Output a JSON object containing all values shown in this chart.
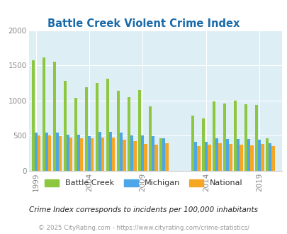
{
  "title": "Battle Creek Violent Crime Index",
  "years": [
    1999,
    2000,
    2001,
    2002,
    2003,
    2004,
    2005,
    2006,
    2007,
    2008,
    2009,
    2010,
    2011,
    2013,
    2014,
    2015,
    2016,
    2017,
    2018,
    2019,
    2020
  ],
  "battle_creek": [
    1570,
    1620,
    1550,
    1280,
    1040,
    1195,
    1250,
    1310,
    1145,
    1050,
    1150,
    920,
    460,
    785,
    750,
    990,
    960,
    1000,
    950,
    940,
    460
  ],
  "michigan": [
    545,
    545,
    540,
    510,
    510,
    495,
    550,
    555,
    545,
    505,
    505,
    495,
    460,
    415,
    415,
    465,
    455,
    455,
    450,
    445,
    390
  ],
  "national": [
    505,
    500,
    490,
    475,
    460,
    465,
    470,
    475,
    440,
    420,
    380,
    370,
    390,
    350,
    375,
    390,
    380,
    370,
    360,
    380,
    350
  ],
  "colors": {
    "battle_creek": "#8dc63f",
    "michigan": "#4da6e8",
    "national": "#f5a623"
  },
  "bg_color": "#ddeef5",
  "ylim": [
    0,
    2000
  ],
  "yticks": [
    0,
    500,
    1000,
    1500,
    2000
  ],
  "xtick_labels": [
    "1999",
    "2004",
    "2009",
    "2014",
    "2019"
  ],
  "subtitle": "Crime Index corresponds to incidents per 100,000 inhabitants",
  "footer": "© 2025 CityRating.com - https://www.cityrating.com/crime-statistics/",
  "title_color": "#1a6aa8",
  "subtitle_color": "#222222",
  "footer_color": "#999999",
  "legend_colors": {
    "Battle Creek": "#8dc63f",
    "Michigan": "#4da6e8",
    "National": "#f5a623"
  }
}
